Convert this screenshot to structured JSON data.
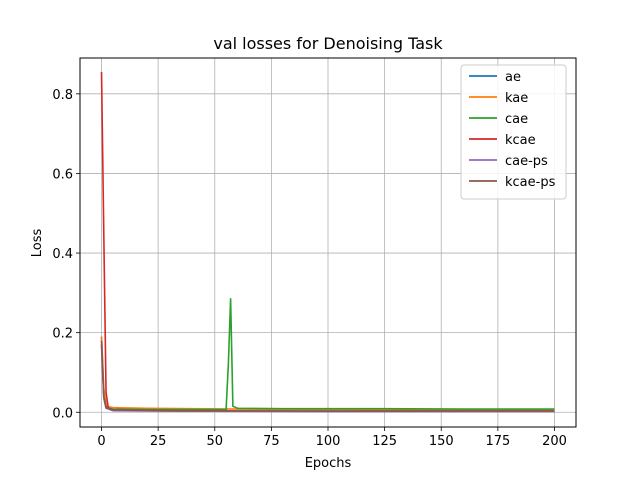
{
  "chart_data": {
    "type": "line",
    "title": "val losses for Denoising Task",
    "xlabel": "Epochs",
    "ylabel": "Loss",
    "xlim": [
      -9.5,
      209.5
    ],
    "ylim": [
      -0.037,
      0.89
    ],
    "xticks": [
      0,
      25,
      50,
      75,
      100,
      125,
      150,
      175,
      200
    ],
    "yticks": [
      0.0,
      0.2,
      0.4,
      0.6,
      0.8
    ],
    "ytick_labels": [
      "0.0",
      "0.2",
      "0.4",
      "0.6",
      "0.8"
    ],
    "grid": true,
    "legend_position": "top-right",
    "series": [
      {
        "name": "ae",
        "color": "#1f77b4",
        "points": [
          [
            0,
            0.19
          ],
          [
            1,
            0.05
          ],
          [
            2,
            0.015
          ],
          [
            4,
            0.006
          ],
          [
            10,
            0.004
          ],
          [
            50,
            0.003
          ],
          [
            100,
            0.002
          ],
          [
            150,
            0.002
          ],
          [
            200,
            0.002
          ]
        ]
      },
      {
        "name": "kae",
        "color": "#ff7f0e",
        "points": [
          [
            0,
            0.19
          ],
          [
            1,
            0.06
          ],
          [
            2,
            0.02
          ],
          [
            3,
            0.014
          ],
          [
            5,
            0.012
          ],
          [
            10,
            0.011
          ],
          [
            20,
            0.01
          ],
          [
            40,
            0.009
          ],
          [
            60,
            0.008
          ],
          [
            100,
            0.007
          ],
          [
            150,
            0.006
          ],
          [
            200,
            0.006
          ]
        ]
      },
      {
        "name": "cae",
        "color": "#2ca02c",
        "points": [
          [
            0,
            0.17
          ],
          [
            1,
            0.04
          ],
          [
            2,
            0.012
          ],
          [
            5,
            0.008
          ],
          [
            20,
            0.007
          ],
          [
            55,
            0.007
          ],
          [
            56,
            0.12
          ],
          [
            57,
            0.285
          ],
          [
            58,
            0.015
          ],
          [
            60,
            0.01
          ],
          [
            80,
            0.009
          ],
          [
            120,
            0.009
          ],
          [
            160,
            0.008
          ],
          [
            200,
            0.008
          ]
        ]
      },
      {
        "name": "kcae",
        "color": "#d62728",
        "points": [
          [
            0,
            0.855
          ],
          [
            1,
            0.45
          ],
          [
            2,
            0.05
          ],
          [
            3,
            0.01
          ],
          [
            5,
            0.006
          ],
          [
            20,
            0.004
          ],
          [
            60,
            0.003
          ],
          [
            120,
            0.003
          ],
          [
            200,
            0.003
          ]
        ]
      },
      {
        "name": "cae-ps",
        "color": "#9467bd",
        "points": [
          [
            0,
            0.17
          ],
          [
            1,
            0.035
          ],
          [
            2,
            0.01
          ],
          [
            5,
            0.004
          ],
          [
            30,
            0.003
          ],
          [
            100,
            0.002
          ],
          [
            200,
            0.002
          ]
        ]
      },
      {
        "name": "kcae-ps",
        "color": "#8c564b",
        "points": [
          [
            0,
            0.18
          ],
          [
            1,
            0.04
          ],
          [
            2,
            0.012
          ],
          [
            5,
            0.006
          ],
          [
            30,
            0.004
          ],
          [
            100,
            0.003
          ],
          [
            200,
            0.003
          ]
        ]
      }
    ]
  }
}
